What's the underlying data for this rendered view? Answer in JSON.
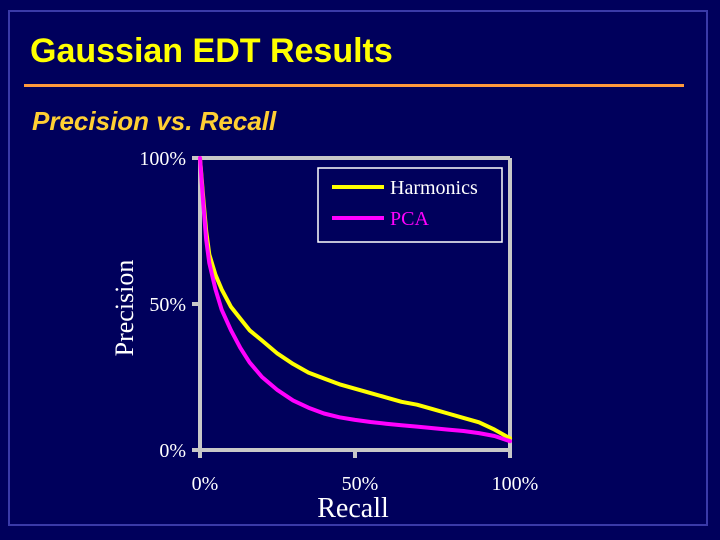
{
  "slide": {
    "title": "Gaussian EDT Results",
    "subtitle": "Precision vs. Recall"
  },
  "colors": {
    "background": "#00005c",
    "title": "#ffff00",
    "rule": "#ff9a3c",
    "subtitle": "#ffcf33",
    "axis": "#c8c8c8",
    "text": "#ffffff"
  },
  "chart_data": {
    "type": "line",
    "title": "",
    "xlabel": "Recall",
    "ylabel": "Precision",
    "xlim": [
      0,
      100
    ],
    "ylim": [
      0,
      100
    ],
    "x_ticks": [
      "0%",
      "50%",
      "100%"
    ],
    "y_ticks": [
      "0%",
      "50%",
      "100%"
    ],
    "grid": false,
    "legend_position": "top-right",
    "series": [
      {
        "name": "Harmonics",
        "color": "#ffff00",
        "x": [
          0,
          1,
          2,
          3,
          5,
          7,
          10,
          13,
          16,
          20,
          25,
          30,
          35,
          40,
          45,
          50,
          55,
          60,
          65,
          70,
          75,
          80,
          85,
          90,
          95,
          100
        ],
        "y": [
          100,
          87,
          75,
          67,
          60,
          55,
          49,
          45,
          41,
          37.5,
          33,
          29.5,
          26.5,
          24.5,
          22.5,
          21,
          19.5,
          18,
          16.5,
          15.5,
          14,
          12.5,
          11,
          9.5,
          7,
          4
        ]
      },
      {
        "name": "PCA",
        "color": "#ff00ff",
        "x": [
          0,
          1,
          2,
          3,
          5,
          7,
          10,
          13,
          16,
          20,
          25,
          30,
          35,
          40,
          45,
          50,
          55,
          60,
          65,
          70,
          75,
          80,
          85,
          90,
          95,
          100
        ],
        "y": [
          100,
          85,
          72,
          64,
          55,
          48,
          41,
          35,
          30,
          25,
          20.5,
          17,
          14.5,
          12.5,
          11.2,
          10.3,
          9.6,
          9,
          8.5,
          8,
          7.5,
          7,
          6.5,
          5.8,
          4.8,
          3
        ]
      }
    ]
  }
}
